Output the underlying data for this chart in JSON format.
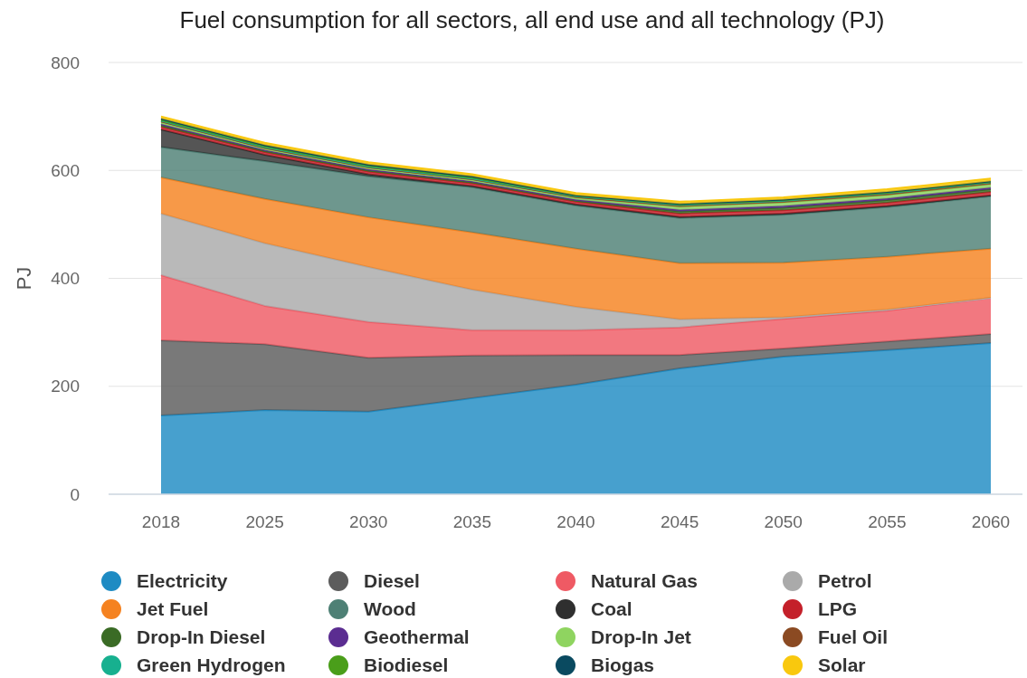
{
  "chart_data": {
    "type": "area",
    "stacked": true,
    "title": "Fuel consumption for all sectors, all end use and all technology (PJ)",
    "ylabel": "PJ",
    "categories": [
      "2018",
      "2025",
      "2030",
      "2035",
      "2040",
      "2045",
      "2050",
      "2055",
      "2060"
    ],
    "ylim": [
      0,
      800
    ],
    "yticks": [
      0,
      200,
      400,
      600,
      800
    ],
    "grid": "y",
    "legend": "bottom",
    "series": [
      {
        "name": "Electricity",
        "color": "#1e8bc3",
        "values": [
          146,
          156,
          153,
          178,
          203,
          233,
          255,
          267,
          280
        ]
      },
      {
        "name": "Diesel",
        "color": "#5c5c5c",
        "values": [
          139,
          122,
          100,
          79,
          55,
          25,
          15,
          16,
          17
        ]
      },
      {
        "name": "Natural Gas",
        "color": "#ef5a64",
        "values": [
          121,
          71,
          66,
          47,
          46,
          51,
          55,
          57,
          67
        ]
      },
      {
        "name": "Petrol",
        "color": "#aaaaaa",
        "values": [
          114,
          116,
          102,
          75,
          43,
          15,
          3,
          2,
          0
        ]
      },
      {
        "name": "Jet Fuel",
        "color": "#f58220",
        "values": [
          67,
          82,
          92,
          106,
          108,
          104,
          101,
          98,
          91
        ]
      },
      {
        "name": "Wood",
        "color": "#4e8075",
        "values": [
          56,
          70,
          76,
          84,
          80,
          84,
          89,
          92,
          97
        ]
      },
      {
        "name": "Coal",
        "color": "#2f2f2f",
        "values": [
          33,
          12,
          4,
          2,
          2,
          2,
          2,
          2,
          2
        ]
      },
      {
        "name": "LPG",
        "color": "#c4202a",
        "values": [
          5,
          5,
          5,
          5,
          5,
          6,
          6,
          6,
          6
        ]
      },
      {
        "name": "Drop-In Diesel",
        "color": "#3a6b25",
        "values": [
          3,
          2,
          2,
          2,
          2,
          4,
          5,
          5,
          5
        ]
      },
      {
        "name": "Geothermal",
        "color": "#5b2d91",
        "values": [
          2,
          2,
          2,
          2,
          2,
          3,
          3,
          3,
          3
        ]
      },
      {
        "name": "Drop-In Jet",
        "color": "#8fd460",
        "values": [
          3,
          2,
          2,
          2,
          3,
          5,
          6,
          6,
          6
        ]
      },
      {
        "name": "Fuel Oil",
        "color": "#8b4a22",
        "values": [
          2,
          2,
          2,
          2,
          2,
          3,
          3,
          3,
          3
        ]
      },
      {
        "name": "Green Hydrogen",
        "color": "#17b08f",
        "values": [
          1,
          1,
          1,
          1,
          1,
          1,
          1,
          1,
          1
        ]
      },
      {
        "name": "Biodiesel",
        "color": "#4a9e1a",
        "values": [
          2,
          2,
          2,
          2,
          1,
          1,
          1,
          1,
          1
        ]
      },
      {
        "name": "Biogas",
        "color": "#0a4a60",
        "values": [
          2,
          2,
          2,
          2,
          1,
          1,
          1,
          1,
          1
        ]
      },
      {
        "name": "Solar",
        "color": "#f9c80e",
        "values": [
          4,
          4,
          4,
          4,
          4,
          4,
          4,
          5,
          5
        ]
      }
    ]
  }
}
